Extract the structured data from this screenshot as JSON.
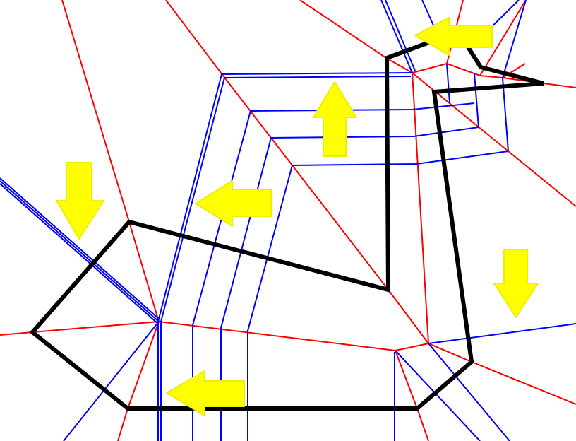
{
  "diagram": {
    "kind": "straight-skeleton construction",
    "colors": {
      "polygon_outline": "#000000",
      "skeleton_edges": "#ff0000",
      "offset_wavefronts": "#0000ff",
      "motion_arrows": "#ffff00"
    },
    "arrows": [
      {
        "name": "arrow-up-top-center",
        "direction": "up"
      },
      {
        "name": "arrow-left-top-right",
        "direction": "left"
      },
      {
        "name": "arrow-down-left",
        "direction": "down"
      },
      {
        "name": "arrow-left-middle",
        "direction": "left"
      },
      {
        "name": "arrow-down-right",
        "direction": "down"
      },
      {
        "name": "arrow-left-bottom",
        "direction": "left"
      }
    ]
  }
}
